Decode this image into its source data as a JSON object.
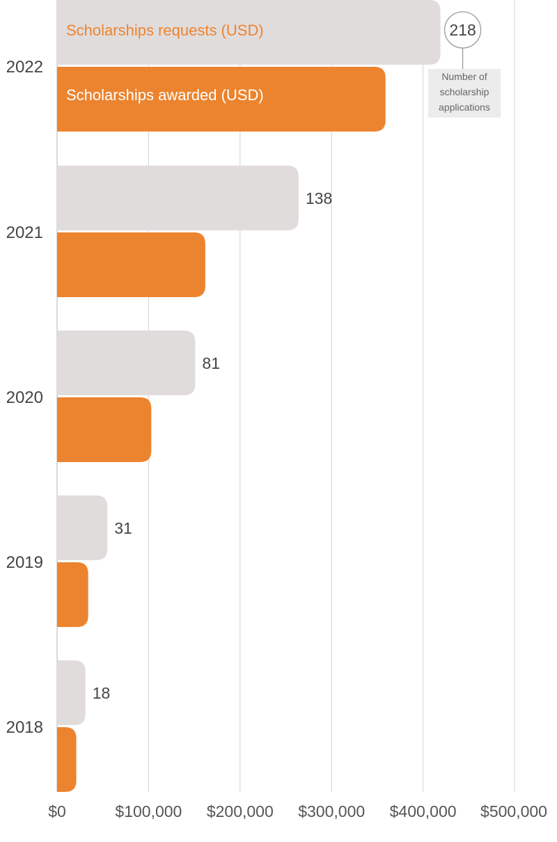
{
  "chart_data": {
    "type": "bar",
    "orientation": "horizontal",
    "categories": [
      "2022",
      "2021",
      "2020",
      "2019",
      "2018"
    ],
    "series": [
      {
        "name": "Scholarships requests (USD)",
        "color": "#e1dcdc",
        "values": [
          419000,
          264000,
          151000,
          55000,
          31000
        ]
      },
      {
        "name": "Scholarships awarded (USD)",
        "color": "#ec842f",
        "values": [
          359000,
          162000,
          103000,
          34000,
          21000
        ]
      }
    ],
    "applications": [
      218,
      138,
      81,
      31,
      18
    ],
    "applications_note": "Number of scholarship applications",
    "x_ticks": [
      0,
      100000,
      200000,
      300000,
      400000,
      500000
    ],
    "x_tick_labels": [
      "$0",
      "$100,000",
      "$200,000",
      "$300,000",
      "$400,000",
      "$500,000"
    ],
    "xlim": [
      0,
      500000
    ],
    "grid": true,
    "title": "",
    "xlabel": "",
    "ylabel": ""
  }
}
